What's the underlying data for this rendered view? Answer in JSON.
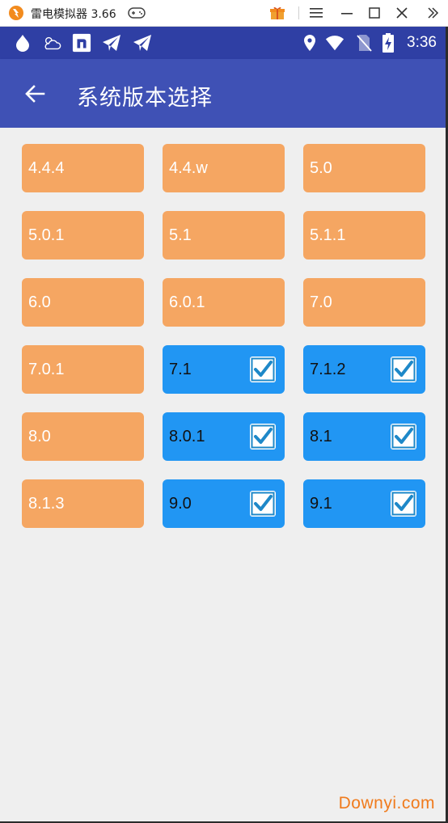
{
  "emulator": {
    "title": "雷电模拟器 3.66",
    "brand_color": "#f28b1e"
  },
  "status_bar": {
    "time": "3:36",
    "left_icons": [
      "app-drop-icon",
      "weather-icon",
      "n-app-icon",
      "telegram-icon",
      "telegram-icon"
    ],
    "right_icons": [
      "location-icon",
      "wifi-icon",
      "no-sim-icon",
      "battery-charging-icon"
    ]
  },
  "app_bar": {
    "title": "系统版本选择",
    "color": "#3f51b5"
  },
  "versions": [
    {
      "label": "4.4.4",
      "selected": false
    },
    {
      "label": "4.4.w",
      "selected": false
    },
    {
      "label": "5.0",
      "selected": false
    },
    {
      "label": "5.0.1",
      "selected": false
    },
    {
      "label": "5.1",
      "selected": false
    },
    {
      "label": "5.1.1",
      "selected": false
    },
    {
      "label": "6.0",
      "selected": false
    },
    {
      "label": "6.0.1",
      "selected": false
    },
    {
      "label": "7.0",
      "selected": false
    },
    {
      "label": "7.0.1",
      "selected": false
    },
    {
      "label": "7.1",
      "selected": true
    },
    {
      "label": "7.1.2",
      "selected": true
    },
    {
      "label": "8.0",
      "selected": false
    },
    {
      "label": "8.0.1",
      "selected": true
    },
    {
      "label": "8.1",
      "selected": true
    },
    {
      "label": "8.1.3",
      "selected": false
    },
    {
      "label": "9.0",
      "selected": true
    },
    {
      "label": "9.1",
      "selected": true
    }
  ],
  "colors": {
    "unselected": "#f5a662",
    "selected": "#2196f3",
    "check": "#1e88c8"
  },
  "watermark": "Downyi.com"
}
